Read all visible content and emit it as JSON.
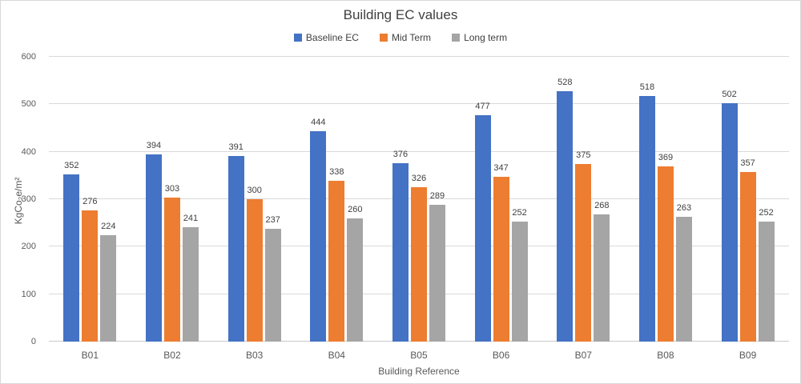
{
  "chart_data": {
    "type": "bar",
    "title": "Building EC values",
    "xlabel": "Building Reference",
    "ylabel": "KgCo₂e/m²",
    "categories": [
      "B01",
      "B02",
      "B03",
      "B04",
      "B05",
      "B06",
      "B07",
      "B08",
      "B09"
    ],
    "series": [
      {
        "name": "Baseline EC",
        "color": "#4472C4",
        "values": [
          352,
          394,
          391,
          444,
          376,
          477,
          528,
          518,
          502
        ]
      },
      {
        "name": "Mid Term",
        "color": "#ED7D31",
        "values": [
          276,
          303,
          300,
          338,
          326,
          347,
          375,
          369,
          357
        ]
      },
      {
        "name": "Long term",
        "color": "#A5A5A5",
        "values": [
          224,
          241,
          237,
          260,
          289,
          252,
          268,
          263,
          252
        ]
      }
    ],
    "ylim": [
      0,
      600
    ],
    "yticks": [
      0,
      100,
      200,
      300,
      400,
      500,
      600
    ],
    "grid": true,
    "legend_position": "top",
    "data_labels": true,
    "gridline_color": "#D9D9D9",
    "text_color": "#404040",
    "axis_text_color": "#595959"
  }
}
